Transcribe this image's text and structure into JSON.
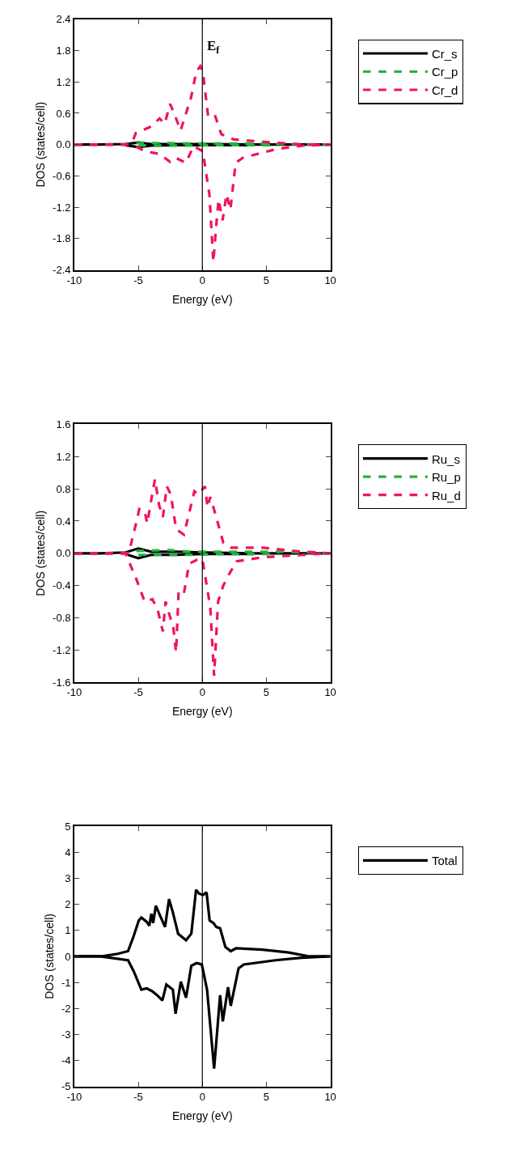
{
  "chart_data": [
    {
      "type": "line",
      "xlabel": "Energy (eV)",
      "ylabel": "DOS (states/cell)",
      "xlim": [
        -10,
        10
      ],
      "xticks": [
        -10,
        -5,
        0,
        5,
        10
      ],
      "ylim": [
        -2.4,
        2.4
      ],
      "yticks": [
        -2.4,
        -1.8,
        -1.2,
        -0.6,
        {
          "value": 0,
          "label": "0.0"
        },
        0.6,
        1.2,
        1.8,
        2.4
      ],
      "legend": "top right",
      "marker": "none",
      "ref_lines": [
        {
          "axis": "x",
          "value": 0,
          "label": "E$_{f}$",
          "color": "#000000"
        }
      ],
      "series": [
        {
          "name": "Cr_s",
          "color": "#000000",
          "line_style": "solid",
          "x": [
            -10,
            -8,
            -6,
            -5,
            -4,
            -2,
            0,
            4,
            10
          ],
          "values": [
            0,
            0,
            0.01,
            0.04,
            0.01,
            0.01,
            0.01,
            0,
            0
          ]
        },
        {
          "color": "#000000",
          "line_style": "solid",
          "x": [
            -6,
            -5,
            -4,
            -2,
            0,
            4
          ],
          "values": [
            -0.01,
            -0.05,
            -0.02,
            -0.01,
            -0.01,
            -0.01
          ]
        },
        {
          "name": "Cr_p",
          "color": "#22b43c",
          "line_style": "dashed",
          "x": [
            -10,
            -6,
            -5,
            -3,
            -1,
            1,
            3,
            6,
            10
          ],
          "values": [
            0,
            0,
            0.03,
            0.03,
            0.02,
            0.02,
            0.02,
            0.01,
            0
          ]
        },
        {
          "color": "#22b43c",
          "line_style": "dashed",
          "x": [
            -5,
            -3,
            -1,
            1,
            3,
            6
          ],
          "values": [
            -0.02,
            -0.02,
            -0.02,
            -0.01,
            -0.01,
            -0.01
          ]
        },
        {
          "name": "Cr_d",
          "color": "#f0145a",
          "line_style": "dashed",
          "x": [
            -10,
            -6,
            -5.5,
            -5.2,
            -3.96,
            -3.34,
            -2.93,
            -2.52,
            -2.2,
            -1.7,
            -0.88,
            -0.47,
            -0.16,
            0.04,
            0.45,
            0.96,
            1.48,
            2.4,
            4.86,
            7.9,
            10
          ],
          "values": [
            0,
            0,
            0.02,
            0.22,
            0.35,
            0.5,
            0.4,
            0.78,
            0.6,
            0.27,
            0.9,
            1.4,
            1.5,
            1.4,
            0.55,
            0.58,
            0.2,
            0.1,
            0.05,
            0,
            0
          ]
        },
        {
          "color": "#f0145a",
          "line_style": "dashed",
          "x": [
            -10,
            -5.5,
            -4.47,
            -3.34,
            -2.52,
            -2.11,
            -1.29,
            -0.68,
            0.04,
            0.55,
            0.86,
            1.07,
            1.27,
            1.58,
            1.89,
            2.19,
            2.6,
            3.2,
            5.9,
            7.9,
            10
          ],
          "values": [
            0,
            0,
            -0.13,
            -0.18,
            -0.33,
            -0.25,
            -0.35,
            -0.03,
            -0.13,
            -0.95,
            -2.25,
            -1.6,
            -1.05,
            -1.45,
            -0.95,
            -1.25,
            -0.35,
            -0.25,
            -0.08,
            -0.02,
            0
          ]
        }
      ]
    },
    {
      "type": "line",
      "xlabel": "Energy (eV)",
      "ylabel": "DOS (states/cell)",
      "xlim": [
        -10,
        10
      ],
      "xticks": [
        -10,
        -5,
        0,
        5,
        10
      ],
      "ylim": [
        -1.6,
        1.6
      ],
      "yticks": [
        -1.6,
        -1.2,
        -0.8,
        -0.4,
        {
          "value": 0,
          "label": "0.0"
        },
        0.4,
        0.8,
        1.2,
        1.6
      ],
      "legend": "top right",
      "marker": "none",
      "ref_lines": [
        {
          "axis": "x",
          "value": 0,
          "color": "#000000"
        }
      ],
      "series": [
        {
          "name": "Ru_s",
          "color": "#000000",
          "line_style": "solid",
          "x": [
            -10,
            -8,
            -6,
            -5,
            -4,
            -2,
            0,
            4,
            10
          ],
          "values": [
            0,
            0,
            0.01,
            0.06,
            0.02,
            0.02,
            0.01,
            0,
            0
          ]
        },
        {
          "color": "#000000",
          "line_style": "solid",
          "x": [
            -6,
            -5,
            -4,
            -2,
            0,
            4
          ],
          "values": [
            -0.01,
            -0.06,
            -0.02,
            -0.02,
            -0.01,
            -0.01
          ]
        },
        {
          "name": "Ru_p",
          "color": "#22b43c",
          "line_style": "dashed",
          "x": [
            -10,
            -6,
            -5,
            -2.5,
            -1,
            1,
            3,
            6,
            10
          ],
          "values": [
            0,
            0,
            0.03,
            0.04,
            0.02,
            0.02,
            0.02,
            0.02,
            0
          ]
        },
        {
          "color": "#22b43c",
          "line_style": "dashed",
          "x": [
            -5,
            -2.5,
            -1,
            1,
            3,
            6
          ],
          "values": [
            -0.02,
            -0.02,
            -0.02,
            -0.01,
            -0.01,
            -0.01
          ]
        },
        {
          "name": "Ru_d",
          "color": "#f0145a",
          "line_style": "dashed",
          "x": [
            -10,
            -6,
            -5.74,
            -5.13,
            -4.92,
            -4.5,
            -4.3,
            -4.0,
            -3.7,
            -3.38,
            -3.08,
            -2.77,
            -2.46,
            -2.05,
            -1.44,
            -0.62,
            -0.31,
            0.21,
            0.41,
            0.62,
            1.03,
            1.64,
            2.26,
            4.72,
            7.8,
            10
          ],
          "values": [
            0,
            0,
            0,
            0.4,
            0.55,
            0.52,
            0.37,
            0.65,
            0.92,
            0.6,
            0.45,
            0.83,
            0.73,
            0.3,
            0.23,
            0.77,
            0.73,
            0.83,
            0.57,
            0.7,
            0.48,
            0.13,
            0.07,
            0.07,
            0.02,
            0
          ]
        },
        {
          "color": "#f0145a",
          "line_style": "dashed",
          "x": [
            -10,
            -6,
            -5.13,
            -4.5,
            -3.9,
            -3.49,
            -3.08,
            -2.87,
            -2.26,
            -2.05,
            -1.85,
            -1.44,
            -1.03,
            -0.41,
            0,
            0.62,
            0.92,
            1.23,
            1.64,
            2.05,
            2.67,
            4.72,
            7.8,
            10
          ],
          "values": [
            0,
            0,
            -0.33,
            -0.6,
            -0.57,
            -0.7,
            -0.97,
            -0.6,
            -0.93,
            -1.23,
            -0.47,
            -0.5,
            -0.13,
            -0.08,
            -0.07,
            -0.67,
            -1.52,
            -0.6,
            -0.4,
            -0.27,
            -0.1,
            -0.05,
            -0.02,
            0
          ]
        }
      ]
    },
    {
      "type": "line",
      "xlabel": "Energy (eV)",
      "ylabel": "DOS (states/cell)",
      "xlim": [
        -10,
        10
      ],
      "xticks": [
        -10,
        -5,
        0,
        5,
        10
      ],
      "ylim": [
        -5,
        5
      ],
      "yticks": [
        -5,
        -4,
        -3,
        -2,
        -1,
        0,
        1,
        2,
        3,
        4,
        5
      ],
      "legend": "top right",
      "marker": "none",
      "ref_lines": [
        {
          "axis": "x",
          "value": 0,
          "color": "#000000"
        }
      ],
      "series": [
        {
          "name": "Total",
          "color": "#000000",
          "line_style": "solid",
          "x": [
            -10,
            -7.84,
            -6.6,
            -5.8,
            -5.37,
            -4.96,
            -4.76,
            -4.35,
            -4.14,
            -3.98,
            -3.84,
            -3.63,
            -3.32,
            -2.91,
            -2.6,
            -2.3,
            -1.89,
            -1.27,
            -0.86,
            -0.49,
            -0.25,
            0.06,
            0.33,
            0.57,
            0.88,
            1.09,
            1.39,
            1.8,
            2.22,
            2.63,
            4.68,
            6.73,
            8.37,
            10
          ],
          "values": [
            0,
            0,
            0.1,
            0.2,
            0.77,
            1.38,
            1.49,
            1.33,
            1.18,
            1.64,
            1.28,
            1.95,
            1.59,
            1.13,
            2.2,
            1.69,
            0.87,
            0.62,
            0.87,
            2.56,
            2.41,
            2.36,
            2.46,
            1.38,
            1.28,
            1.13,
            1.08,
            0.36,
            0.2,
            0.31,
            0.26,
            0.15,
            0,
            0
          ]
        },
        {
          "color": "#000000",
          "line_style": "solid",
          "x": [
            -10,
            -8,
            -5.8,
            -5.37,
            -4.76,
            -4.35,
            -3.94,
            -3.53,
            -3.12,
            -2.81,
            -2.3,
            -2.09,
            -1.68,
            -1.27,
            -0.86,
            -0.45,
            -0.04,
            0.37,
            0.92,
            1.39,
            1.6,
            2.01,
            2.22,
            2.83,
            3.24,
            5.7,
            7.75,
            10
          ],
          "values": [
            0,
            0,
            -0.15,
            -0.56,
            -1.28,
            -1.23,
            -1.33,
            -1.49,
            -1.69,
            -1.08,
            -1.28,
            -2.2,
            -0.97,
            -1.59,
            -0.36,
            -0.26,
            -0.31,
            -1.28,
            -4.31,
            -1.49,
            -2.5,
            -1.18,
            -1.9,
            -0.46,
            -0.31,
            -0.15,
            -0.05,
            0
          ]
        }
      ]
    }
  ]
}
